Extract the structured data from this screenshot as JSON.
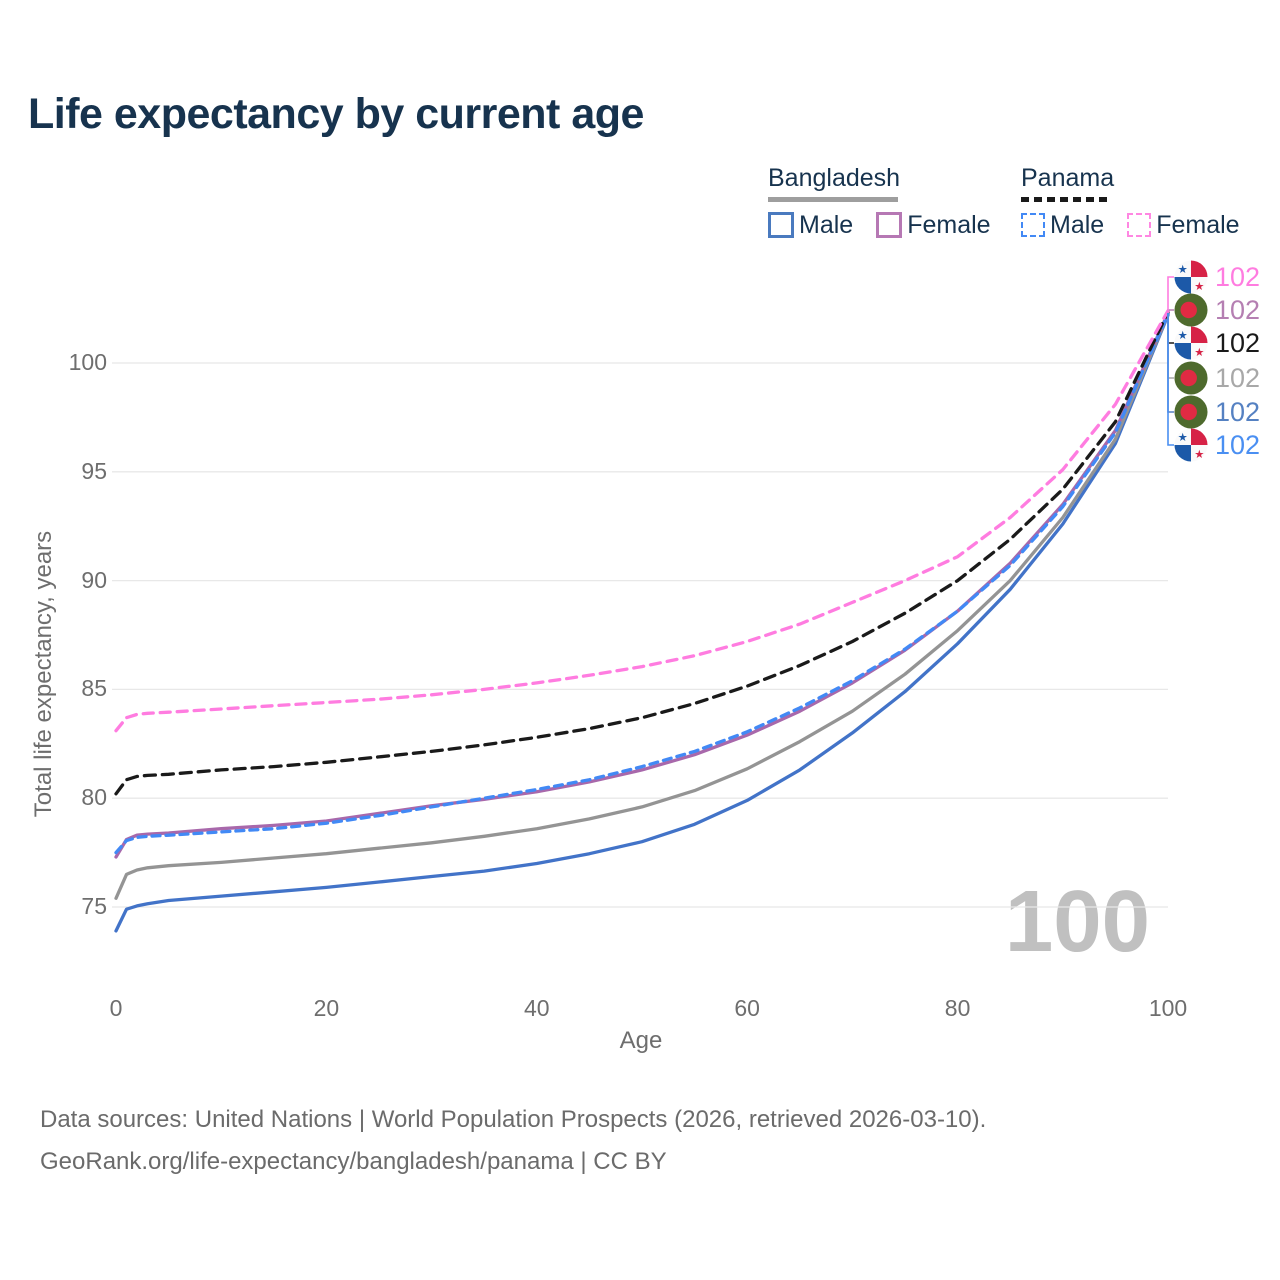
{
  "title": "Life expectancy by current age",
  "legend": {
    "groups": [
      {
        "country": "Bangladesh",
        "line_style": "solid",
        "underline_color": "#9e9e9e",
        "items": [
          {
            "label": "Male",
            "color": "#4273c8",
            "dashed": false
          },
          {
            "label": "Female",
            "color": "#a868ab",
            "dashed": false
          }
        ]
      },
      {
        "country": "Panama",
        "line_style": "dashed",
        "underline_color": "#1a1a1a",
        "items": [
          {
            "label": "Male",
            "color": "#4289f5",
            "dashed": true
          },
          {
            "label": "Female",
            "color": "#ff7ce0",
            "dashed": true
          }
        ]
      }
    ]
  },
  "axes": {
    "x": {
      "title": "Age",
      "tick_labels": [
        "0",
        "20",
        "40",
        "60",
        "80",
        "100"
      ],
      "tick_values": [
        0,
        20,
        40,
        60,
        80,
        100
      ]
    },
    "y": {
      "title": "Total life expectancy, years",
      "tick_labels": [
        "75",
        "80",
        "85",
        "90",
        "95",
        "100"
      ],
      "tick_values": [
        75,
        80,
        85,
        90,
        95,
        100
      ]
    }
  },
  "age_indicator": "100",
  "end_labels": [
    {
      "flag": "panama",
      "series": "Panama Female",
      "value": "102",
      "color": "#ff7ce0"
    },
    {
      "flag": "bangladesh",
      "series": "Bangladesh Female",
      "value": "102",
      "color": "#b57fb2"
    },
    {
      "flag": "panama",
      "series": "Panama Both sexes",
      "value": "102",
      "color": "#1a1a1a"
    },
    {
      "flag": "bangladesh",
      "series": "Bangladesh Both sexes",
      "value": "102",
      "color": "#a8a8a8"
    },
    {
      "flag": "bangladesh",
      "series": "Bangladesh Male",
      "value": "102",
      "color": "#5581c2"
    },
    {
      "flag": "panama",
      "series": "Panama Male",
      "value": "102",
      "color": "#4a8ff2"
    }
  ],
  "footer": {
    "line1": "Data sources: United Nations | World Population Prospects (2026, retrieved 2026-03-10).",
    "line2": "GeoRank.org/life-expectancy/bangladesh/panama | CC BY"
  },
  "chart_data": {
    "type": "line",
    "title": "Life expectancy by current age",
    "xlabel": "Age",
    "ylabel": "Total life expectancy, years",
    "xlim": [
      0,
      100
    ],
    "ylim": [
      73,
      103.5
    ],
    "x_ticks": [
      0,
      20,
      40,
      60,
      80,
      100
    ],
    "y_ticks": [
      75,
      80,
      85,
      90,
      95,
      100
    ],
    "grid": "horizontal",
    "legend_position": "top-right",
    "ages": [
      0,
      1,
      2,
      3,
      5,
      10,
      15,
      20,
      25,
      30,
      35,
      40,
      45,
      50,
      55,
      60,
      65,
      70,
      75,
      80,
      85,
      90,
      95,
      100
    ],
    "series": [
      {
        "name": "Bangladesh Male",
        "country": "Bangladesh",
        "sex": "Male",
        "style": "solid",
        "color": "#4273c8",
        "end_label": 102,
        "values": [
          73.9,
          74.9,
          75.05,
          75.15,
          75.3,
          75.5,
          75.7,
          75.9,
          76.15,
          76.4,
          76.65,
          77.0,
          77.45,
          78.0,
          78.8,
          79.9,
          81.3,
          83.0,
          84.9,
          87.1,
          89.6,
          92.6,
          96.3,
          102.2
        ]
      },
      {
        "name": "Bangladesh Both sexes",
        "country": "Bangladesh",
        "sex": "Both",
        "style": "solid",
        "color": "#949494",
        "end_label": 102,
        "values": [
          75.4,
          76.5,
          76.7,
          76.8,
          76.9,
          77.05,
          77.25,
          77.45,
          77.7,
          77.95,
          78.25,
          78.6,
          79.05,
          79.6,
          80.35,
          81.35,
          82.6,
          84.0,
          85.7,
          87.7,
          90.0,
          92.9,
          96.5,
          102.25
        ]
      },
      {
        "name": "Bangladesh Female",
        "country": "Bangladesh",
        "sex": "Female",
        "style": "solid",
        "color": "#a868ab",
        "end_label": 102,
        "values": [
          77.3,
          78.1,
          78.3,
          78.35,
          78.4,
          78.6,
          78.75,
          78.95,
          79.3,
          79.65,
          79.95,
          80.3,
          80.75,
          81.3,
          82.0,
          82.9,
          84.0,
          85.3,
          86.8,
          88.6,
          90.8,
          93.5,
          96.9,
          102.3
        ]
      },
      {
        "name": "Panama Male",
        "country": "Panama",
        "sex": "Male",
        "style": "dashed",
        "color": "#4289f5",
        "end_label": 102,
        "values": [
          77.5,
          78.05,
          78.2,
          78.25,
          78.3,
          78.45,
          78.6,
          78.85,
          79.2,
          79.6,
          80.0,
          80.4,
          80.85,
          81.45,
          82.15,
          83.05,
          84.15,
          85.4,
          86.85,
          88.6,
          90.7,
          93.4,
          96.8,
          102.25
        ]
      },
      {
        "name": "Panama Both sexes",
        "country": "Panama",
        "sex": "Both",
        "style": "dashed",
        "color": "#1a1a1a",
        "end_label": 102,
        "values": [
          80.2,
          80.85,
          81.0,
          81.05,
          81.1,
          81.3,
          81.45,
          81.65,
          81.9,
          82.15,
          82.45,
          82.8,
          83.2,
          83.7,
          84.35,
          85.15,
          86.1,
          87.2,
          88.5,
          90.0,
          91.9,
          94.2,
          97.3,
          102.35
        ]
      },
      {
        "name": "Panama Female",
        "country": "Panama",
        "sex": "Female",
        "style": "dashed",
        "color": "#ff7ce0",
        "end_label": 102,
        "values": [
          83.1,
          83.7,
          83.85,
          83.9,
          83.95,
          84.1,
          84.25,
          84.4,
          84.55,
          84.75,
          85.0,
          85.3,
          85.65,
          86.05,
          86.55,
          87.2,
          88.0,
          89.0,
          90.0,
          91.1,
          92.9,
          95.1,
          98.1,
          102.4
        ]
      }
    ]
  }
}
